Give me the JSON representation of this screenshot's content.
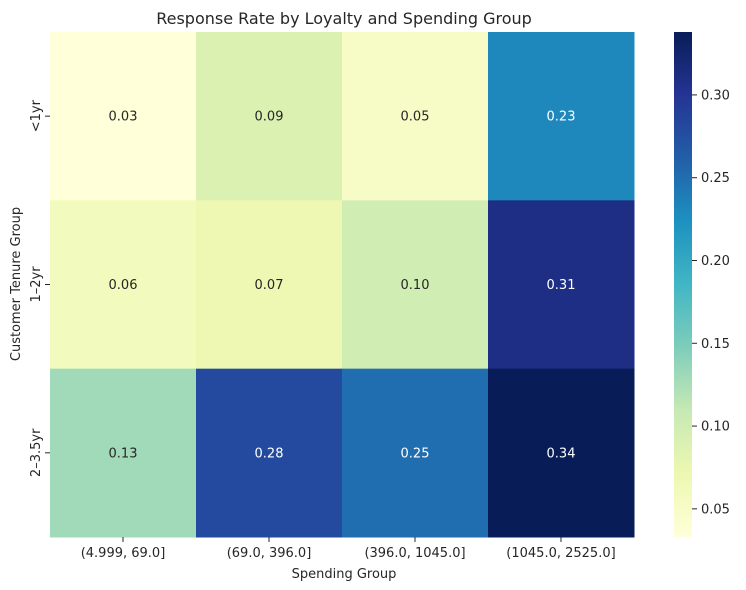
{
  "chart_data": {
    "type": "heatmap",
    "title": "Response Rate by Loyalty and Spending Group",
    "xlabel": "Spending Group",
    "ylabel": "Customer Tenure Group",
    "x_categories": [
      "(4.999, 69.0]",
      "(69.0, 396.0]",
      "(396.0, 1045.0]",
      "(1045.0, 2525.0]"
    ],
    "y_categories": [
      "<1yr",
      "1–2yr",
      "2–3.5yr"
    ],
    "values": [
      [
        0.03,
        0.09,
        0.05,
        0.23
      ],
      [
        0.06,
        0.07,
        0.1,
        0.31
      ],
      [
        0.13,
        0.28,
        0.25,
        0.34
      ]
    ],
    "value_labels": [
      [
        "0.03",
        "0.09",
        "0.05",
        "0.23"
      ],
      [
        "0.06",
        "0.07",
        "0.10",
        "0.31"
      ],
      [
        "0.13",
        "0.28",
        "0.25",
        "0.34"
      ]
    ],
    "colormap": "YlGnBu",
    "colorbar": {
      "min": 0.033,
      "max": 0.338,
      "ticks": [
        0.05,
        0.1,
        0.15,
        0.2,
        0.25,
        0.3
      ],
      "tick_labels": [
        "0.05",
        "0.10",
        "0.15",
        "0.20",
        "0.25",
        "0.30"
      ]
    },
    "grid": false,
    "legend": "colorbar-right"
  }
}
